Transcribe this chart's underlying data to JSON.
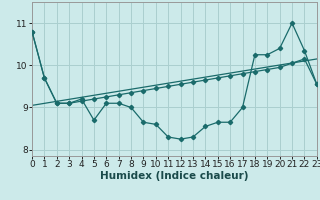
{
  "xlabel": "Humidex (Indice chaleur)",
  "bg_color": "#cceaea",
  "grid_color": "#aacfcf",
  "line_color": "#1a6b6b",
  "series_curve": {
    "x": [
      0,
      1,
      2,
      3,
      4,
      5,
      6,
      7,
      8,
      9,
      10,
      11,
      12,
      13,
      14,
      15,
      16,
      17,
      18,
      19,
      20,
      21,
      22,
      23
    ],
    "y": [
      10.8,
      9.7,
      9.1,
      9.1,
      9.2,
      8.7,
      9.1,
      9.1,
      9.0,
      8.65,
      8.6,
      8.3,
      8.25,
      8.3,
      8.55,
      8.65,
      8.65,
      9.0,
      10.25,
      10.25,
      10.4,
      11.0,
      10.35,
      9.55
    ]
  },
  "series_trend": {
    "x": [
      0,
      23
    ],
    "y": [
      9.05,
      10.15
    ]
  },
  "series_flat": {
    "x": [
      0,
      1,
      2,
      3,
      4,
      5,
      6,
      7,
      8,
      9,
      10,
      11,
      12,
      13,
      14,
      15,
      16,
      17,
      18,
      19,
      20,
      21,
      22,
      23
    ],
    "y": [
      10.8,
      9.7,
      9.1,
      9.1,
      9.15,
      9.2,
      9.25,
      9.3,
      9.35,
      9.4,
      9.45,
      9.5,
      9.55,
      9.6,
      9.65,
      9.7,
      9.75,
      9.8,
      9.85,
      9.9,
      9.95,
      10.05,
      10.15,
      9.55
    ]
  },
  "xlim": [
    0,
    23
  ],
  "ylim": [
    7.85,
    11.5
  ],
  "yticks": [
    8,
    9,
    10,
    11
  ],
  "xticks": [
    0,
    1,
    2,
    3,
    4,
    5,
    6,
    7,
    8,
    9,
    10,
    11,
    12,
    13,
    14,
    15,
    16,
    17,
    18,
    19,
    20,
    21,
    22,
    23
  ],
  "fontsize": 6.5,
  "xlabel_fontsize": 7.5
}
